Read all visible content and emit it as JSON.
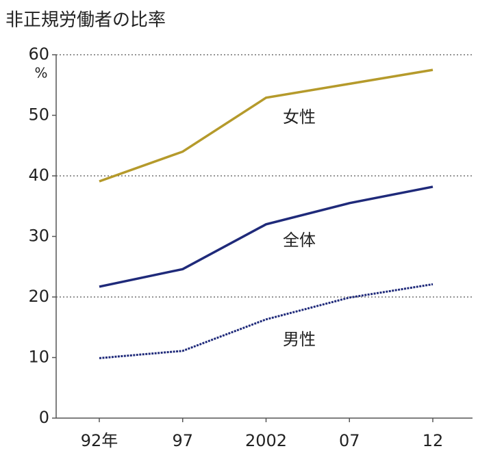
{
  "chart_data": {
    "type": "line",
    "title": "非正規労働者の比率",
    "y_unit": "%",
    "categories": [
      "92年",
      "97",
      "2002",
      "07",
      "12"
    ],
    "series": [
      {
        "name": "女性",
        "color": "#b59a2b",
        "line_style": "solid",
        "values": [
          39.1,
          44.0,
          52.9,
          55.2,
          57.5
        ]
      },
      {
        "name": "全体",
        "color": "#1f2a7a",
        "line_style": "solid",
        "values": [
          21.7,
          24.6,
          32.0,
          35.5,
          38.2
        ]
      },
      {
        "name": "男性",
        "color": "#1f2a7a",
        "line_style": "dotted",
        "values": [
          9.9,
          11.1,
          16.3,
          19.9,
          22.1
        ]
      }
    ],
    "ylim": [
      0,
      60
    ],
    "yticks": [
      0,
      10,
      20,
      30,
      40,
      50,
      60
    ],
    "grid": true
  }
}
